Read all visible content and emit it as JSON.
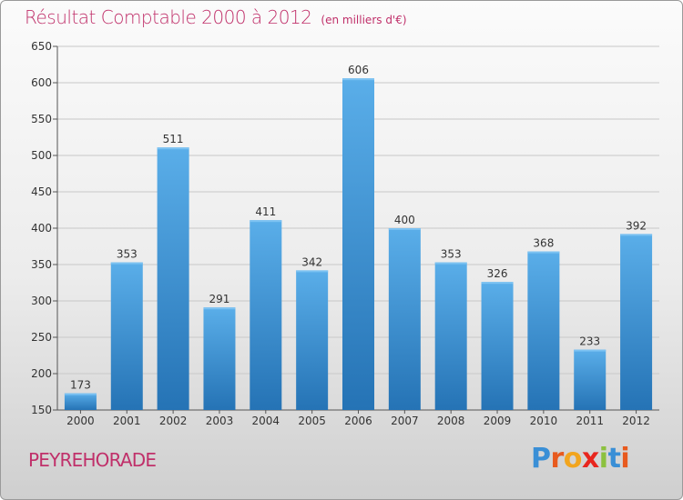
{
  "header": {
    "title": "Résultat Comptable 2000 à 2012",
    "unit": "(en milliers d'€)"
  },
  "footer": {
    "commune": "PEYREHORADE",
    "logo_letters": [
      "P",
      "r",
      "o",
      "x",
      "i",
      "t",
      "i"
    ]
  },
  "colors": {
    "accent": "#c0306a",
    "bar_top": "#5aaee9",
    "bar_bottom": "#2573b5"
  },
  "chart_data": {
    "type": "bar",
    "title": "Résultat Comptable 2000 à 2012",
    "subtitle": "(en milliers d'€)",
    "categories": [
      "2000",
      "2001",
      "2002",
      "2003",
      "2004",
      "2005",
      "2006",
      "2007",
      "2008",
      "2009",
      "2010",
      "2011",
      "2012"
    ],
    "values": [
      173,
      353,
      511,
      291,
      411,
      342,
      606,
      400,
      353,
      326,
      368,
      233,
      392
    ],
    "ylim": [
      150,
      650
    ],
    "yticks": [
      150,
      200,
      250,
      300,
      350,
      400,
      450,
      500,
      550,
      600,
      650
    ],
    "grid": true,
    "legend": "none"
  }
}
